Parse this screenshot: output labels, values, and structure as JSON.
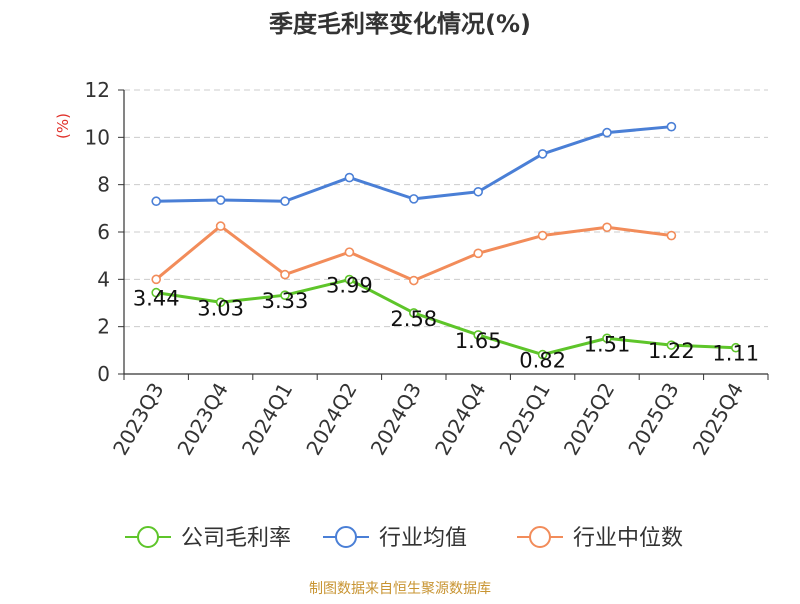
{
  "chart_data": {
    "type": "line",
    "title": "季度毛利率变化情况(%)",
    "ylabel": "(%)",
    "ylim": [
      0,
      12
    ],
    "yticks": [
      0,
      2,
      4,
      6,
      8,
      10,
      12
    ],
    "grid": true,
    "legend_position": "bottom",
    "categories": [
      "2023Q3",
      "2023Q4",
      "2024Q1",
      "2024Q2",
      "2024Q3",
      "2024Q4",
      "2025Q1",
      "2025Q2",
      "2025Q3",
      "2025Q4"
    ],
    "series": [
      {
        "name": "公司毛利率",
        "color": "#5ec52a",
        "values": [
          3.44,
          3.03,
          3.33,
          3.99,
          2.58,
          1.65,
          0.82,
          1.51,
          1.22,
          1.11
        ],
        "labels": [
          "3.44",
          "3.03",
          "3.33",
          "3.99",
          "2.58",
          "1.65",
          "0.82",
          "1.51",
          "1.22",
          "1.11"
        ]
      },
      {
        "name": "行业均值",
        "color": "#4a7fd6",
        "values": [
          7.3,
          7.35,
          7.3,
          8.3,
          7.4,
          7.7,
          9.3,
          10.2,
          10.45,
          null
        ]
      },
      {
        "name": "行业中位数",
        "color": "#f28c5a",
        "values": [
          4.0,
          6.25,
          4.2,
          5.15,
          3.95,
          5.1,
          5.85,
          6.2,
          5.85,
          null
        ]
      }
    ]
  },
  "source": {
    "text": "制图数据来自恒生聚源数据库",
    "color": "#c89432"
  },
  "colors": {
    "axis": "#333333",
    "grid": "#cccccc",
    "ylabel": "#e0302a"
  }
}
